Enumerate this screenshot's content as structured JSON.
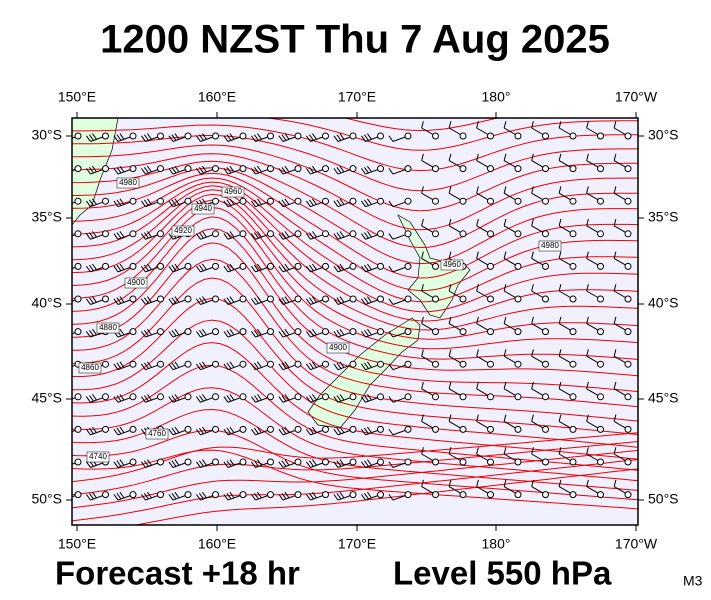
{
  "title": "1200 NZST Thu 7 Aug 2025",
  "axes": {
    "top": [
      "150°E",
      "160°E",
      "170°E",
      "180°",
      "170°W"
    ],
    "bottom": [
      "150°E",
      "160°E",
      "170°E",
      "180°",
      "170°W"
    ],
    "left": [
      "30°S",
      "35°S",
      "40°S",
      "45°S",
      "50°S"
    ],
    "right": [
      "30°S",
      "35°S",
      "40°S",
      "45°S",
      "50°S"
    ]
  },
  "contour_labels": [
    "4980",
    "4960",
    "4940",
    "4920",
    "4900",
    "4880",
    "4860",
    "4760",
    "4740",
    "4980",
    "4960",
    "4900"
  ],
  "footer": {
    "forecast": "Forecast +18 hr",
    "level": "Level 550 hPa",
    "code": "M3"
  }
}
